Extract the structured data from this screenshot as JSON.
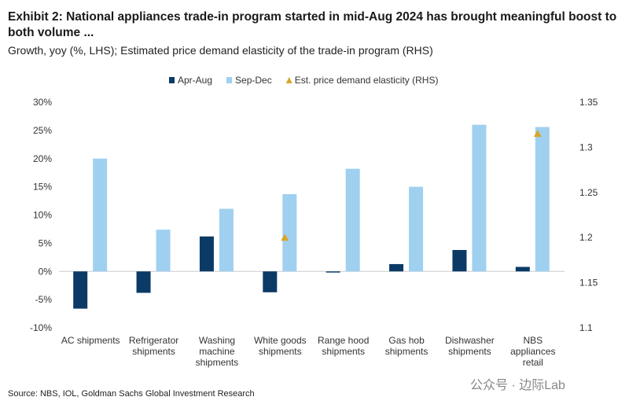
{
  "title": "Exhibit 2: National appliances trade-in program started in mid-Aug 2024 has brought meaningful boost to both volume ...",
  "subtitle": "Growth, yoy (%, LHS); Estimated price demand elasticity of the trade-in program (RHS)",
  "source": "Source: NBS, IOL, Goldman Sachs Global Investment Research",
  "watermark": "公众号 · 边际Lab",
  "chart_data": {
    "type": "bar",
    "categories": [
      [
        "AC shipments"
      ],
      [
        "Refrigerator",
        "shipments"
      ],
      [
        "Washing",
        "machine",
        "shipments"
      ],
      [
        "White goods",
        "shipments"
      ],
      [
        "Range hood",
        "shipments"
      ],
      [
        "Gas hob",
        "shipments"
      ],
      [
        "Dishwasher",
        "shipments"
      ],
      [
        "NBS",
        "appliances",
        "retail"
      ]
    ],
    "series": [
      {
        "name": "Apr-Aug",
        "axis": "left",
        "color": "#0b3a66",
        "values": [
          -6.6,
          -3.8,
          6.2,
          -3.7,
          -0.2,
          1.3,
          3.8,
          0.8
        ]
      },
      {
        "name": "Sep-Dec",
        "axis": "left",
        "color": "#9fd0f0",
        "values": [
          20.0,
          7.4,
          11.1,
          13.7,
          18.2,
          15.0,
          26.0,
          25.6
        ]
      },
      {
        "name": "Est. price demand elasticity (RHS)",
        "axis": "right",
        "type": "marker-triangle",
        "color": "#d9a62a",
        "values": [
          null,
          null,
          null,
          1.2,
          null,
          null,
          null,
          1.315
        ]
      }
    ],
    "ylim": [
      -10,
      30
    ],
    "yticks": [
      "-10%",
      "-5%",
      "0%",
      "5%",
      "10%",
      "15%",
      "20%",
      "25%",
      "30%"
    ],
    "y2lim": [
      1.1,
      1.35
    ],
    "y2ticks": [
      "1.1",
      "1.15",
      "1.2",
      "1.25",
      "1.3",
      "1.35"
    ],
    "legend": "top",
    "grid": false
  }
}
